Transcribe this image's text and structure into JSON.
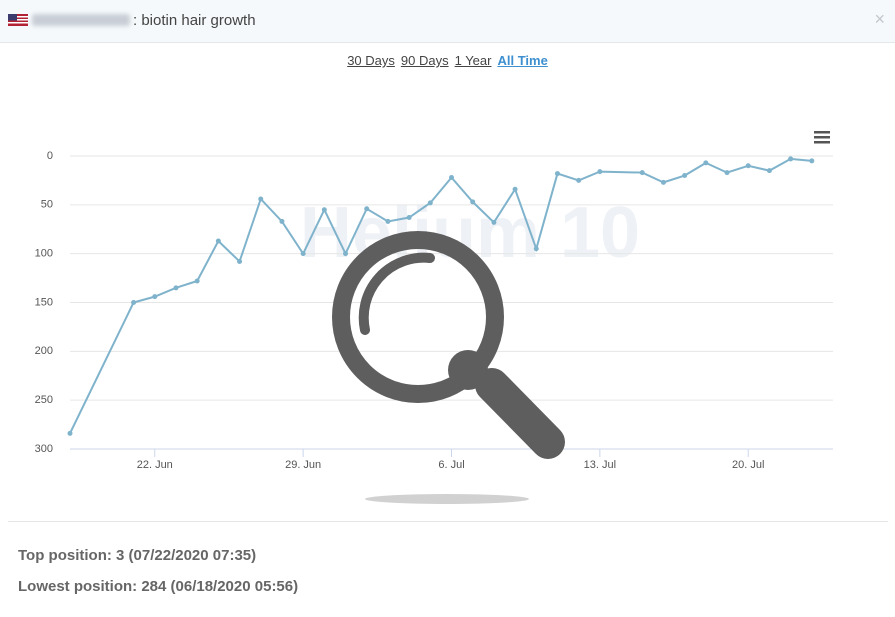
{
  "header": {
    "title": ": biotin hair growth"
  },
  "range_options": [
    "30 Days",
    "90 Days",
    "1 Year",
    "All Time"
  ],
  "active_range": 3,
  "chart_data": {
    "type": "line",
    "x": [
      "Jun 18",
      "Jun 21",
      "Jun 22",
      "Jun 23",
      "Jun 24",
      "Jun 25",
      "Jun 26",
      "Jun 27",
      "Jun 28",
      "Jun 29",
      "Jun 30",
      "Jul 1",
      "Jul 2",
      "Jul 3",
      "Jul 4",
      "Jul 5",
      "Jul 6",
      "Jul 7",
      "Jul 8",
      "Jul 9",
      "Jul 10",
      "Jul 11",
      "Jul 12",
      "Jul 13",
      "Jul 15",
      "Jul 16",
      "Jul 17",
      "Jul 18",
      "Jul 19",
      "Jul 20",
      "Jul 21",
      "Jul 22",
      "Jul 23"
    ],
    "values": [
      284,
      150,
      144,
      135,
      128,
      87,
      108,
      44,
      67,
      100,
      55,
      100,
      54,
      67,
      63,
      48,
      22,
      47,
      68,
      34,
      95,
      18,
      25,
      16,
      17,
      27,
      20,
      7,
      17,
      10,
      15,
      3,
      5
    ],
    "color": "#7fb3cc",
    "xlim": [
      "Jun 18",
      "Jul 24"
    ],
    "xticks": [
      {
        "value": "Jun 22",
        "label": "22. Jun"
      },
      {
        "value": "Jun 29",
        "label": "29. Jun"
      },
      {
        "value": "Jul 6",
        "label": "6. Jul"
      },
      {
        "value": "Jul 13",
        "label": "13. Jul"
      },
      {
        "value": "Jul 20",
        "label": "20. Jul"
      }
    ],
    "ylim": [
      300,
      0
    ],
    "yticks": [
      0,
      50,
      100,
      150,
      200,
      250,
      300
    ],
    "grid": true,
    "watermark": "Helium 10"
  },
  "stats": [
    "Top position: 3 (07/22/2020 07:35)",
    "Lowest position: 284 (06/18/2020 05:56)"
  ]
}
